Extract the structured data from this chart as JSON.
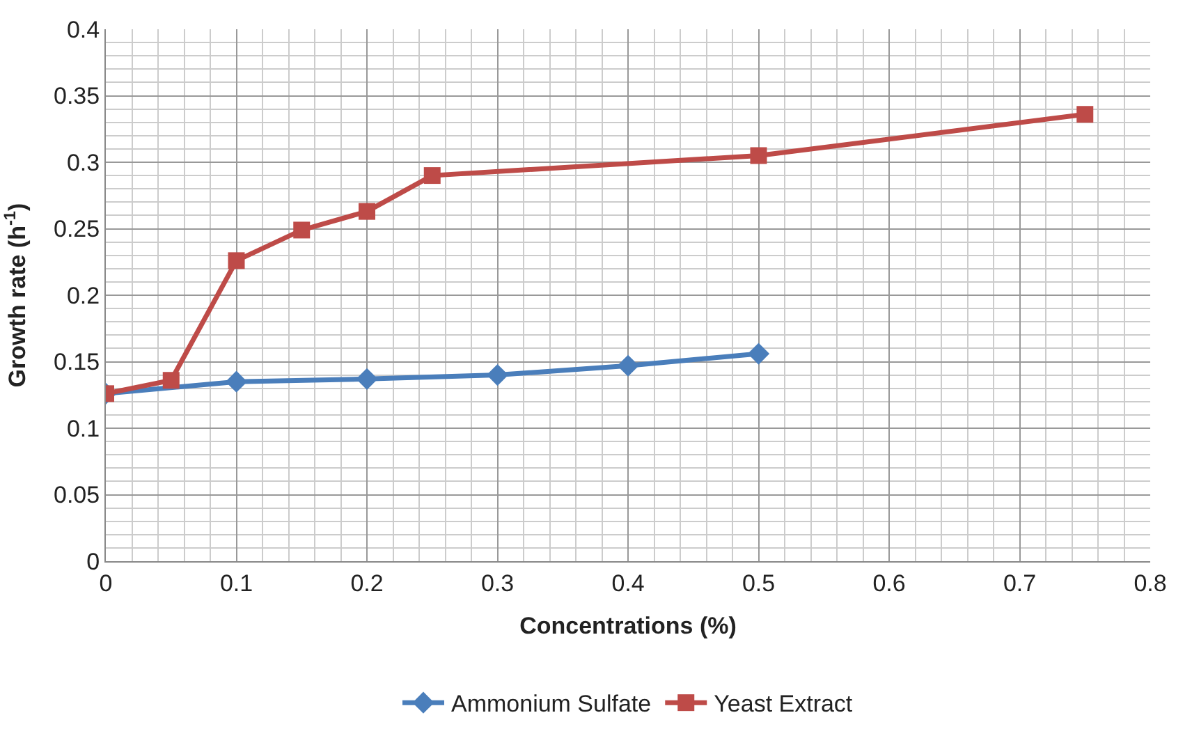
{
  "chart_data": {
    "type": "line",
    "xlabel": "Concentrations (%)",
    "ylabel": "Growth rate (h$^{-1}$)",
    "xlim": [
      0,
      0.8
    ],
    "xticks": [
      0,
      0.1,
      0.2,
      0.3,
      0.4,
      0.5,
      0.6,
      0.7,
      0.8
    ],
    "ylim": [
      0,
      0.4
    ],
    "yticks": [
      0,
      0.05,
      0.1,
      0.15,
      0.2,
      0.25,
      0.3,
      0.35,
      0.4
    ],
    "grid": true,
    "legend": "bottom",
    "series": [
      {
        "name": "Ammonium Sulfate",
        "color": "#4a7ebb",
        "marker": "diamond",
        "x": [
          0,
          0.1,
          0.2,
          0.3,
          0.4,
          0.5
        ],
        "values": [
          0.126,
          0.135,
          0.137,
          0.14,
          0.147,
          0.156
        ]
      },
      {
        "name": "Yeast Extract",
        "color": "#be4b48",
        "marker": "square",
        "x": [
          0,
          0.05,
          0.1,
          0.15,
          0.2,
          0.25,
          0.5,
          0.75
        ],
        "values": [
          0.126,
          0.136,
          0.226,
          0.249,
          0.263,
          0.29,
          0.305,
          0.336
        ]
      }
    ]
  }
}
